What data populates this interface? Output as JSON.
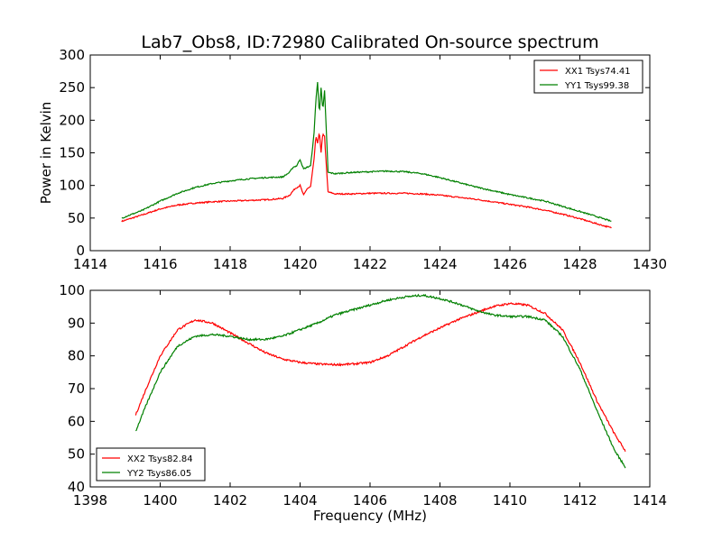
{
  "figure": {
    "title": "Lab7_Obs8, ID:72980 Calibrated On-source spectrum",
    "xlabel": "Frequency (MHz)"
  },
  "chart_data": [
    {
      "type": "line",
      "title": "Lab7_Obs8, ID:72980 Calibrated On-source spectrum",
      "xlabel": "",
      "ylabel": "Power in Kelvin",
      "xlim": [
        1414,
        1430
      ],
      "ylim": [
        0,
        300
      ],
      "xticks": [
        1414,
        1416,
        1418,
        1420,
        1422,
        1424,
        1426,
        1428,
        1430
      ],
      "yticks": [
        0,
        50,
        100,
        150,
        200,
        250,
        300
      ],
      "grid": false,
      "legend": "top-right",
      "series": [
        {
          "name": "XX1 Tsys74.41",
          "color": "#ff0000",
          "x": [
            1414.9,
            1415.5,
            1416.0,
            1416.5,
            1417.0,
            1417.5,
            1418.0,
            1418.5,
            1419.0,
            1419.5,
            1419.7,
            1419.85,
            1420.0,
            1420.1,
            1420.2,
            1420.3,
            1420.4,
            1420.45,
            1420.5,
            1420.55,
            1420.6,
            1420.65,
            1420.7,
            1420.75,
            1420.8,
            1421.0,
            1421.5,
            1422.0,
            1422.5,
            1423.0,
            1423.5,
            1424.0,
            1424.5,
            1425.0,
            1425.5,
            1426.0,
            1426.5,
            1427.0,
            1427.5,
            1428.0,
            1428.5,
            1428.9
          ],
          "y": [
            45,
            55,
            64,
            70,
            73,
            75,
            76,
            77,
            78,
            80,
            85,
            95,
            100,
            85,
            95,
            98,
            140,
            175,
            165,
            182,
            150,
            180,
            175,
            130,
            90,
            87,
            87,
            88,
            88,
            88,
            87,
            85,
            82,
            79,
            75,
            71,
            67,
            62,
            56,
            49,
            41,
            35
          ]
        },
        {
          "name": "YY1 Tsys99.38",
          "color": "#008000",
          "x": [
            1414.9,
            1415.5,
            1416.0,
            1416.5,
            1417.0,
            1417.5,
            1418.0,
            1418.5,
            1419.0,
            1419.5,
            1419.7,
            1419.8,
            1419.9,
            1420.0,
            1420.1,
            1420.2,
            1420.3,
            1420.4,
            1420.45,
            1420.5,
            1420.55,
            1420.6,
            1420.65,
            1420.7,
            1420.75,
            1420.8,
            1421.0,
            1421.5,
            1422.0,
            1422.5,
            1423.0,
            1423.5,
            1424.0,
            1424.5,
            1425.0,
            1425.5,
            1426.0,
            1426.5,
            1427.0,
            1427.5,
            1428.0,
            1428.5,
            1428.9
          ],
          "y": [
            50,
            62,
            76,
            88,
            97,
            103,
            107,
            110,
            112,
            113,
            120,
            128,
            130,
            140,
            125,
            128,
            130,
            180,
            230,
            258,
            210,
            250,
            215,
            245,
            185,
            120,
            118,
            120,
            121,
            122,
            121,
            118,
            112,
            105,
            98,
            92,
            86,
            81,
            76,
            68,
            60,
            52,
            45
          ]
        }
      ]
    },
    {
      "type": "line",
      "title": "",
      "xlabel": "Frequency (MHz)",
      "ylabel": "",
      "xlim": [
        1398,
        1414
      ],
      "ylim": [
        40,
        100
      ],
      "xticks": [
        1398,
        1400,
        1402,
        1404,
        1406,
        1408,
        1410,
        1412,
        1414
      ],
      "yticks": [
        40,
        50,
        60,
        70,
        80,
        90,
        100
      ],
      "grid": false,
      "legend": "bottom-left",
      "series": [
        {
          "name": "XX2 Tsys82.84",
          "color": "#ff0000",
          "x": [
            1399.3,
            1399.6,
            1400.0,
            1400.5,
            1401.0,
            1401.5,
            1402.0,
            1402.5,
            1403.0,
            1403.5,
            1404.0,
            1404.5,
            1405.0,
            1405.5,
            1406.0,
            1406.5,
            1407.0,
            1407.5,
            1408.0,
            1408.5,
            1409.0,
            1409.5,
            1410.0,
            1410.5,
            1411.0,
            1411.5,
            1412.0,
            1412.5,
            1413.0,
            1413.3
          ],
          "y": [
            62,
            70,
            80,
            88,
            91,
            90,
            87,
            84,
            81,
            79,
            78,
            77.5,
            77.3,
            77.5,
            78,
            80,
            83,
            86,
            88.5,
            91,
            93,
            95,
            96,
            95.5,
            93,
            88,
            78,
            66,
            56,
            51
          ]
        },
        {
          "name": "YY2 Tsys86.05",
          "color": "#008000",
          "x": [
            1399.3,
            1399.6,
            1400.0,
            1400.5,
            1401.0,
            1401.5,
            1402.0,
            1402.5,
            1403.0,
            1403.5,
            1404.0,
            1404.5,
            1405.0,
            1405.5,
            1406.0,
            1406.5,
            1407.0,
            1407.5,
            1408.0,
            1408.5,
            1409.0,
            1409.5,
            1410.0,
            1410.5,
            1411.0,
            1411.5,
            1412.0,
            1412.5,
            1413.0,
            1413.3
          ],
          "y": [
            57,
            65,
            75,
            83,
            86,
            86.5,
            86,
            85,
            85,
            86,
            88,
            90,
            92.5,
            94,
            95.5,
            97,
            98,
            98.5,
            97.5,
            96,
            94,
            92.5,
            92,
            92,
            91,
            86,
            76,
            63,
            51,
            46
          ]
        }
      ]
    }
  ]
}
